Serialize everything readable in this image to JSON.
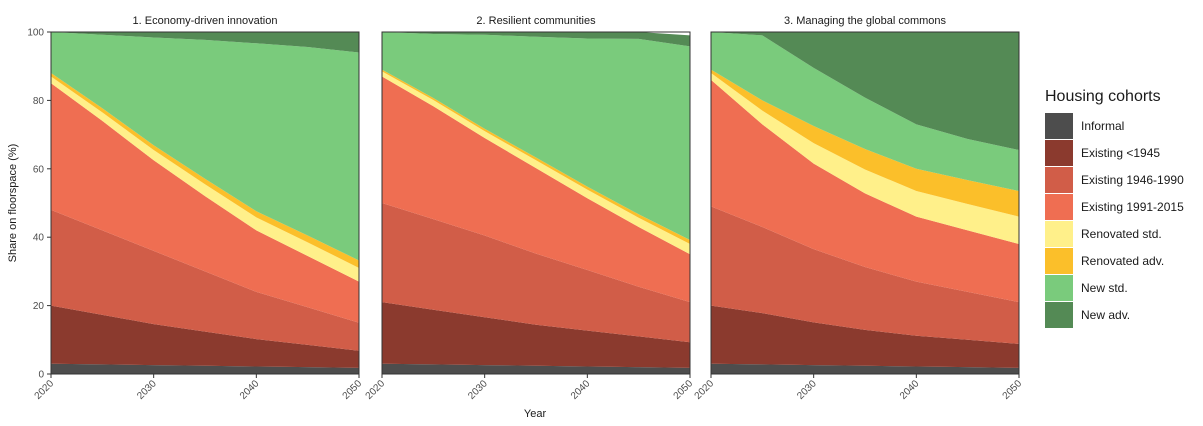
{
  "chart_data": {
    "type": "area",
    "stacked": true,
    "xlabel": "Year",
    "ylabel": "Share on floorspace (%)",
    "xlim": [
      2020,
      2050
    ],
    "ylim": [
      0,
      100
    ],
    "x_ticks": [
      "2020",
      "2030",
      "2040",
      "2050"
    ],
    "y_ticks": [
      "0",
      "20",
      "40",
      "60",
      "80",
      "100"
    ],
    "grid": false,
    "legend": {
      "title": "Housing cohorts",
      "position": "right",
      "items": [
        {
          "name": "Informal",
          "color": "#4d4d4d"
        },
        {
          "name": "Existing <1945",
          "color": "#8b3a2e"
        },
        {
          "name": "Existing 1946-1990",
          "color": "#d15d48"
        },
        {
          "name": "Existing 1991-2015",
          "color": "#ef6e52"
        },
        {
          "name": "Renovated std.",
          "color": "#fff08a"
        },
        {
          "name": "Renovated adv.",
          "color": "#fbbf2a"
        },
        {
          "name": "New std.",
          "color": "#7acb7c"
        },
        {
          "name": "New adv.",
          "color": "#548a55"
        }
      ]
    },
    "x": [
      2020,
      2025,
      2030,
      2035,
      2040,
      2045,
      2050
    ],
    "panels": [
      {
        "title": "1. Economy-driven innovation",
        "series": [
          {
            "name": "Informal",
            "values": [
              3,
              2.8,
              2.6,
              2.4,
              2.2,
              2.0,
              1.8
            ]
          },
          {
            "name": "Existing <1945",
            "values": [
              17,
              14.5,
              12,
              10,
              8,
              6.5,
              5
            ]
          },
          {
            "name": "Existing 1946-1990",
            "values": [
              28,
              24.7,
              21.4,
              17.6,
              13.8,
              11,
              8.2
            ]
          },
          {
            "name": "Existing 1991-2015",
            "values": [
              37,
              32,
              26.5,
              22,
              18,
              15,
              12
            ]
          },
          {
            "name": "Renovated std.",
            "values": [
              2,
              2.5,
              3,
              3.5,
              3.8,
              4,
              4
            ]
          },
          {
            "name": "Renovated adv.",
            "values": [
              1,
              1.2,
              1.4,
              1.6,
              1.8,
              2,
              2.2
            ]
          },
          {
            "name": "New std.",
            "values": [
              12,
              21.5,
              31.5,
              40.6,
              49.1,
              55.1,
              60.8
            ]
          },
          {
            "name": "New adv.",
            "values": [
              0,
              0.8,
              1.6,
              2.3,
              3.3,
              4.4,
              6
            ]
          }
        ]
      },
      {
        "title": "2. Resilient communities",
        "series": [
          {
            "name": "Informal",
            "values": [
              3,
              2.8,
              2.6,
              2.4,
              2.2,
              2.0,
              1.8
            ]
          },
          {
            "name": "Existing <1945",
            "values": [
              18,
              16,
              14,
              12,
              10.5,
              9,
              7.5
            ]
          },
          {
            "name": "Existing 1946-1990",
            "values": [
              29,
              26.5,
              23.9,
              20.8,
              17.7,
              14.5,
              11.7
            ]
          },
          {
            "name": "Existing 1991-2015",
            "values": [
              37,
              33,
              28.5,
              25,
              21,
              17.5,
              14
            ]
          },
          {
            "name": "Renovated std.",
            "values": [
              1.5,
              1.8,
              2,
              2.3,
              2.5,
              2.7,
              3
            ]
          },
          {
            "name": "Renovated adv.",
            "values": [
              0.5,
              0.6,
              0.7,
              0.8,
              0.9,
              1.0,
              1.2
            ]
          },
          {
            "name": "New std.",
            "values": [
              11,
              18.7,
              27.5,
              35.3,
              43.3,
              51.3,
              56.6
            ]
          },
          {
            "name": "New adv.",
            "values": [
              0,
              0.6,
              0.8,
              1.4,
              1.9,
              2.0,
              3.2
            ]
          }
        ]
      },
      {
        "title": "3. Managing the global commons",
        "series": [
          {
            "name": "Informal",
            "values": [
              3,
              2.8,
              2.6,
              2.4,
              2.2,
              2.0,
              1.8
            ]
          },
          {
            "name": "Existing <1945",
            "values": [
              17,
              15,
              12.5,
              10.5,
              9,
              8,
              7
            ]
          },
          {
            "name": "Existing 1946-1990",
            "values": [
              29,
              25.2,
              21.4,
              18.4,
              15.8,
              14,
              12.2
            ]
          },
          {
            "name": "Existing 1991-2015",
            "values": [
              37,
              30,
              25,
              21.5,
              19,
              18,
              17
            ]
          },
          {
            "name": "Renovated std.",
            "values": [
              2,
              4,
              6,
              7,
              7.5,
              7.7,
              8
            ]
          },
          {
            "name": "Renovated adv.",
            "values": [
              1,
              3,
              5,
              6,
              6.5,
              7,
              7.5
            ]
          },
          {
            "name": "New std.",
            "values": [
              11,
              19,
              17,
              15,
              13,
              12,
              12
            ]
          },
          {
            "name": "New adv.",
            "values": [
              0,
              1,
              10.5,
              19.2,
              27,
              31.3,
              34.5
            ]
          }
        ]
      }
    ]
  }
}
